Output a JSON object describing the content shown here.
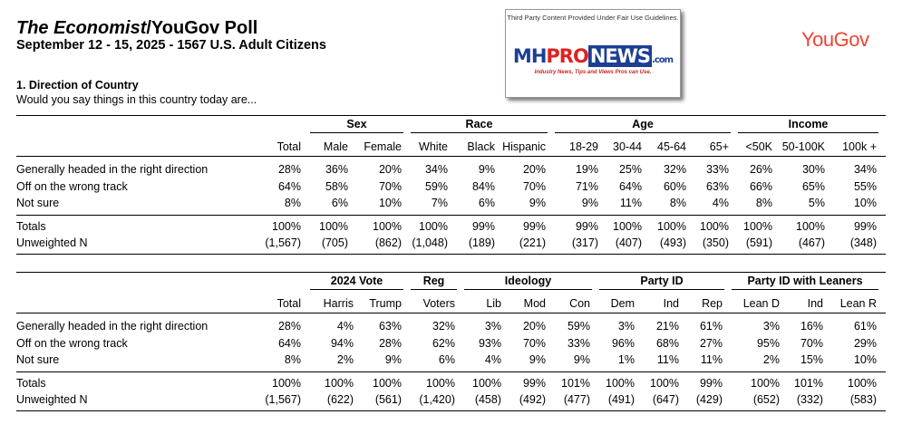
{
  "header": {
    "title_italic": "The Economist",
    "title_rest": "/YouGov Poll",
    "subtitle": "September 12 - 15, 2025 - 1567 U.S. Adult Citizens",
    "logo": "YouGov"
  },
  "watermark": {
    "notice": "Third Party Content Provided Under Fair Use Guidelines.",
    "brand": [
      "MH",
      "PRO",
      "NEWS",
      ".com"
    ],
    "tagline": "Industry News, Tips and Views Pros can Use."
  },
  "question": {
    "title": "1. Direction of Country",
    "text": "Would you say things in this country today are..."
  },
  "tables": [
    {
      "groups": [
        {
          "columns": [
            "Total"
          ]
        },
        {
          "label": "Sex",
          "columns": [
            "Male",
            "Female"
          ]
        },
        {
          "label": "Race",
          "columns": [
            "White",
            "Black",
            "Hispanic"
          ]
        },
        {
          "label": "Age",
          "columns": [
            "18-29",
            "30-44",
            "45-64",
            "65+"
          ]
        },
        {
          "label": "Income",
          "columns": [
            "<50K",
            "50-100K",
            "100k +"
          ]
        }
      ],
      "rows": [
        {
          "label": "Generally headed in the right direction",
          "values": [
            "28%",
            "36%",
            "20%",
            "34%",
            "9%",
            "20%",
            "19%",
            "25%",
            "32%",
            "33%",
            "26%",
            "30%",
            "34%"
          ]
        },
        {
          "label": "Off on the wrong track",
          "values": [
            "64%",
            "58%",
            "70%",
            "59%",
            "84%",
            "70%",
            "71%",
            "64%",
            "60%",
            "63%",
            "66%",
            "65%",
            "55%"
          ]
        },
        {
          "label": "Not sure",
          "values": [
            "8%",
            "6%",
            "10%",
            "7%",
            "6%",
            "9%",
            "9%",
            "11%",
            "8%",
            "4%",
            "8%",
            "5%",
            "10%"
          ]
        }
      ],
      "totals": [
        {
          "label": "Totals",
          "values": [
            "100%",
            "100%",
            "100%",
            "100%",
            "99%",
            "99%",
            "99%",
            "100%",
            "100%",
            "100%",
            "100%",
            "100%",
            "99%"
          ]
        },
        {
          "label": "Unweighted N",
          "values": [
            "(1,567)",
            "(705)",
            "(862)",
            "(1,048)",
            "(189)",
            "(221)",
            "(317)",
            "(407)",
            "(493)",
            "(350)",
            "(591)",
            "(467)",
            "(348)"
          ]
        }
      ]
    },
    {
      "groups": [
        {
          "columns": [
            "Total"
          ]
        },
        {
          "label": "2024 Vote",
          "columns": [
            "Harris",
            "Trump"
          ]
        },
        {
          "label": "Reg",
          "columns": [
            "Voters"
          ]
        },
        {
          "label": "Ideology",
          "columns": [
            "Lib",
            "Mod",
            "Con"
          ]
        },
        {
          "label": "Party ID",
          "columns": [
            "Dem",
            "Ind",
            "Rep"
          ]
        },
        {
          "label": "Party ID with Leaners",
          "columns": [
            "Lean D",
            "Ind",
            "Lean R"
          ]
        }
      ],
      "rows": [
        {
          "label": "Generally headed in the right direction",
          "values": [
            "28%",
            "4%",
            "63%",
            "32%",
            "3%",
            "20%",
            "59%",
            "3%",
            "21%",
            "61%",
            "3%",
            "16%",
            "61%"
          ]
        },
        {
          "label": "Off on the wrong track",
          "values": [
            "64%",
            "94%",
            "28%",
            "62%",
            "93%",
            "70%",
            "33%",
            "96%",
            "68%",
            "27%",
            "95%",
            "70%",
            "29%"
          ]
        },
        {
          "label": "Not sure",
          "values": [
            "8%",
            "2%",
            "9%",
            "6%",
            "4%",
            "9%",
            "9%",
            "1%",
            "11%",
            "11%",
            "2%",
            "15%",
            "10%"
          ]
        }
      ],
      "totals": [
        {
          "label": "Totals",
          "values": [
            "100%",
            "100%",
            "100%",
            "100%",
            "100%",
            "99%",
            "101%",
            "100%",
            "100%",
            "99%",
            "100%",
            "101%",
            "100%"
          ]
        },
        {
          "label": "Unweighted N",
          "values": [
            "(1,567)",
            "(622)",
            "(561)",
            "(1,420)",
            "(458)",
            "(492)",
            "(477)",
            "(491)",
            "(647)",
            "(429)",
            "(652)",
            "(332)",
            "(583)"
          ]
        }
      ]
    }
  ]
}
